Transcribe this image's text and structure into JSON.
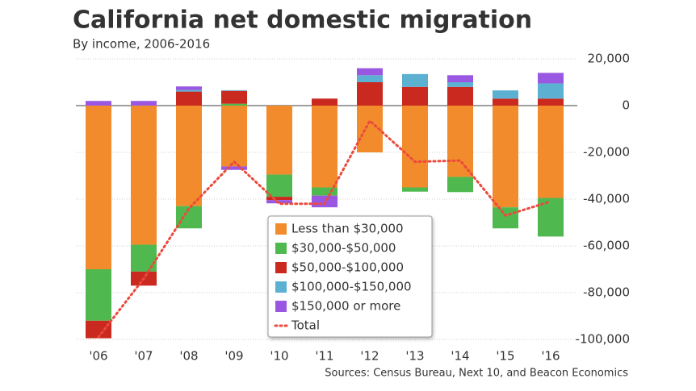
{
  "chart_data": {
    "type": "bar",
    "stacked": true,
    "title": "California net domestic migration",
    "subtitle": "By income, 2006-2016",
    "source": "Sources: Census Bureau, Next 10, and Beacon Economics",
    "categories": [
      "'06",
      "'07",
      "'08",
      "'09",
      "'10",
      "'11",
      "'12",
      "'13",
      "'14",
      "'15",
      "'16"
    ],
    "series": [
      {
        "name": "Less than $30,000",
        "color": "#f28b2c",
        "values": [
          -70000,
          -59500,
          -43000,
          -26000,
          -29500,
          -35000,
          -20000,
          -35000,
          -30500,
          -43500,
          -39500
        ]
      },
      {
        "name": "$30,000-$50,000",
        "color": "#4fb84f",
        "values": [
          -22000,
          -11500,
          -9500,
          800,
          -9500,
          -3500,
          0,
          -1800,
          -6500,
          -9000,
          -16500
        ]
      },
      {
        "name": "$50,000-$100,000",
        "color": "#c9291f",
        "values": [
          -7500,
          -6000,
          6000,
          5500,
          -1400,
          3000,
          10000,
          8000,
          8000,
          3000,
          3000
        ]
      },
      {
        "name": "$100,000-$150,000",
        "color": "#5cb0d2",
        "values": [
          0,
          0,
          700,
          300,
          0,
          0,
          3000,
          5500,
          2000,
          3500,
          6500
        ]
      },
      {
        "name": "$150,000 or more",
        "color": "#9a58e2",
        "values": [
          2000,
          2000,
          1500,
          -1500,
          -1400,
          -5000,
          3000,
          0,
          3000,
          0,
          4500
        ]
      }
    ],
    "total": {
      "name": "Total",
      "color": "#ec4a3c",
      "values": [
        -99000,
        -74000,
        -44000,
        -24000,
        -42000,
        -42000,
        -6500,
        -24000,
        -23500,
        -47000,
        -41000
      ]
    },
    "ylim": [
      -102000,
      22000
    ],
    "yticks": [
      {
        "value": 20000,
        "label": "20,000"
      },
      0,
      {
        "value": -20000,
        "label": "-20,000"
      },
      {
        "value": -40000,
        "label": "-40,000"
      },
      {
        "value": -60000,
        "label": "-60,000"
      },
      {
        "value": -80000,
        "label": "-80,000"
      },
      {
        "value": -100000,
        "label": "-100,000"
      }
    ],
    "grid": true
  }
}
